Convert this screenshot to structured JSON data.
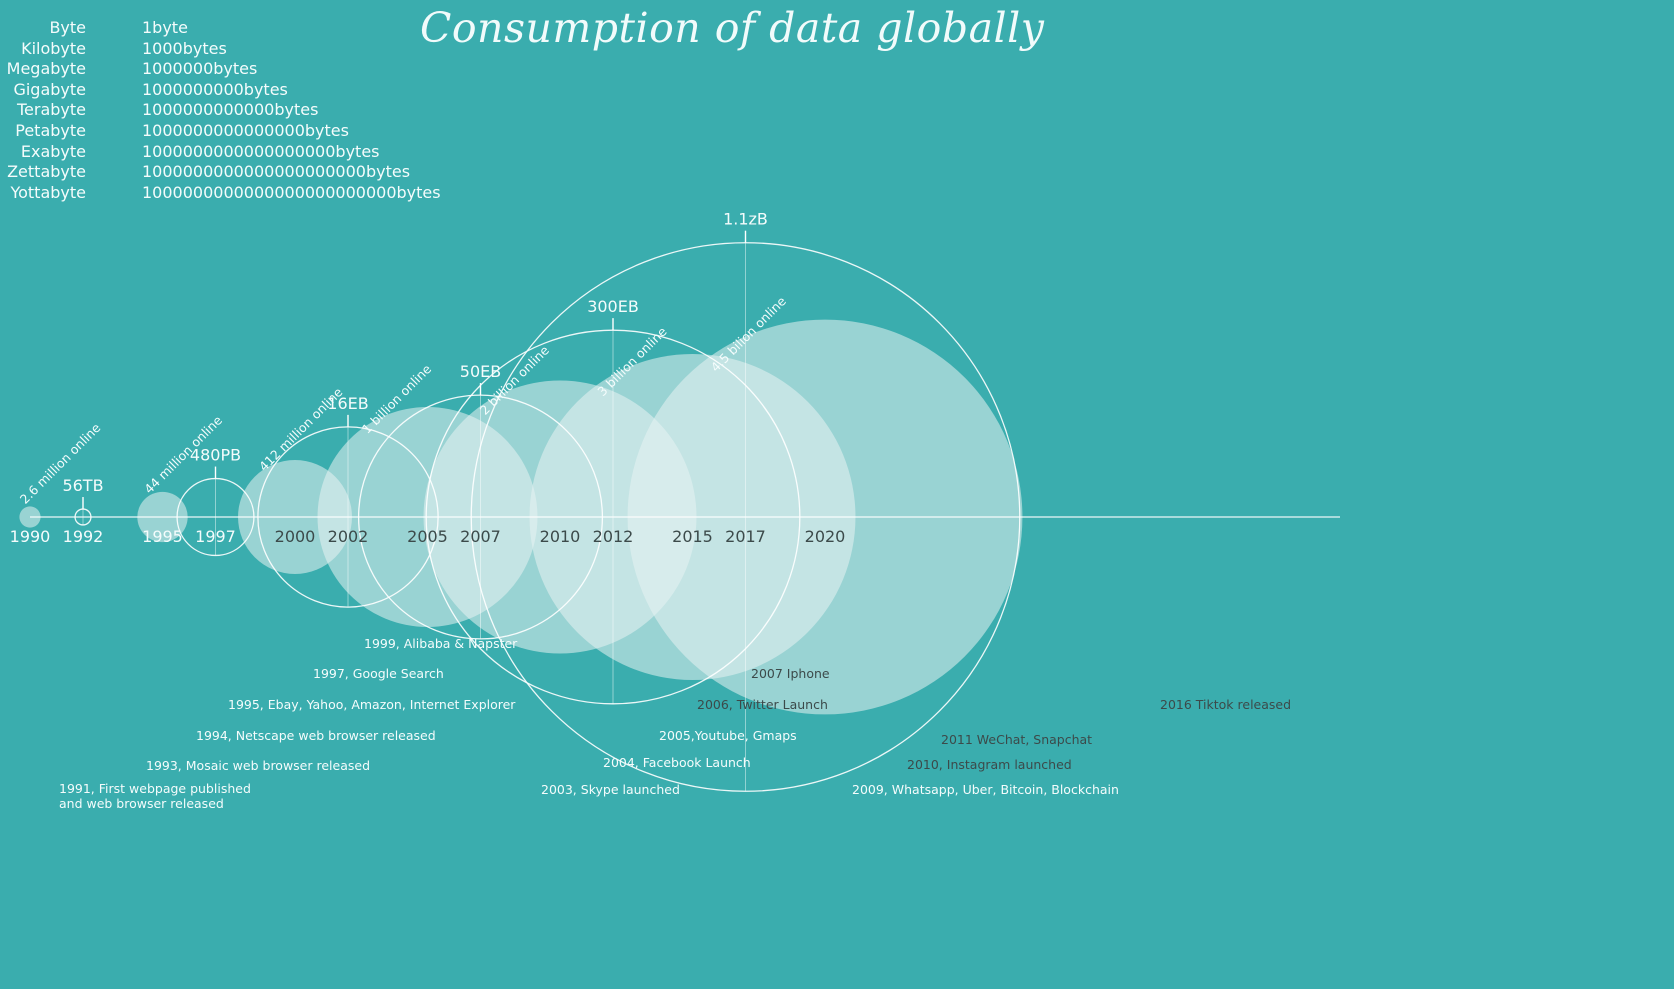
{
  "title": "Consumption of data globally",
  "units": [
    {
      "name": "Byte",
      "value": "1byte"
    },
    {
      "name": "Kilobyte",
      "value": "1000bytes"
    },
    {
      "name": "Megabyte",
      "value": "1000000bytes"
    },
    {
      "name": "Gigabyte",
      "value": "1000000000bytes"
    },
    {
      "name": "Terabyte",
      "value": "1000000000000bytes"
    },
    {
      "name": "Petabyte",
      "value": "1000000000000000bytes"
    },
    {
      "name": "Exabyte",
      "value": "1000000000000000000bytes"
    },
    {
      "name": "Zettabyte",
      "value": "1000000000000000000000bytes"
    },
    {
      "name": "Yottabyte",
      "value": "1000000000000000000000000bytes"
    }
  ],
  "colors": {
    "background": "#3aadae",
    "bubble_fill": "#e8f3f3",
    "line": "#ffffff",
    "text_light": "#f4fcfc",
    "text_dark": "#3c4a4a"
  },
  "chart_data": {
    "type": "bubble-timeline",
    "title": "Consumption of data globally",
    "x": [
      "1990",
      "1992",
      "1995",
      "1997",
      "2000",
      "2002",
      "2005",
      "2007",
      "2010",
      "2012",
      "2015",
      "2017",
      "2020"
    ],
    "users_online": [
      {
        "year": 1990,
        "label": "2.6 million online",
        "circle_diameter_years": 0.8
      },
      {
        "year": 1995,
        "label": "44 million online",
        "circle_diameter_years": 1.9
      },
      {
        "year": 2000,
        "label": "412 million online",
        "circle_diameter_years": 4.3
      },
      {
        "year": 2005,
        "label": "1 billion online",
        "circle_diameter_years": 8.3
      },
      {
        "year": 2010,
        "label": "2 billion online",
        "circle_diameter_years": 10.3
      },
      {
        "year": 2015,
        "label": "3 billion online",
        "circle_diameter_years": 12.3
      },
      {
        "year": 2020,
        "label": "4.5  bilion online",
        "circle_diameter_years": 14.9
      }
    ],
    "data_consumption": [
      {
        "year": 1992,
        "label": "56TB",
        "circle_diameter_years": 0.6
      },
      {
        "year": 1997,
        "label": "480PB",
        "circle_diameter_years": 2.9
      },
      {
        "year": 2002,
        "label": "16EB",
        "circle_diameter_years": 6.8
      },
      {
        "year": 2007,
        "label": "50EB",
        "circle_diameter_years": 9.2
      },
      {
        "year": 2012,
        "label": "300EB",
        "circle_diameter_years": 14.1
      },
      {
        "year": 2017,
        "label": "1.1zB",
        "circle_diameter_years": 20.7
      }
    ],
    "events": [
      {
        "year": 1991,
        "text": "1991, First webpage published\nand web browser released"
      },
      {
        "year": 1993,
        "text": "1993, Mosaic web browser released"
      },
      {
        "year": 1994,
        "text": "1994, Netscape web browser released"
      },
      {
        "year": 1995,
        "text": "1995, Ebay, Yahoo,  Amazon, Internet Explorer"
      },
      {
        "year": 1997,
        "text": "1997, Google Search"
      },
      {
        "year": 1999,
        "text": "1999, Alibaba & Napster"
      },
      {
        "year": 2003,
        "text": "2003, Skype launched"
      },
      {
        "year": 2004,
        "text": "2004, Facebook Launch"
      },
      {
        "year": 2005,
        "text": "2005,Youtube, Gmaps"
      },
      {
        "year": 2006,
        "text": "2006, Twitter Launch"
      },
      {
        "year": 2007,
        "text": "2007 Iphone"
      },
      {
        "year": 2009,
        "text": "2009, Whatsapp, Uber, Bitcoin, Blockchain"
      },
      {
        "year": 2010,
        "text": "2010, Instagram launched"
      },
      {
        "year": 2011,
        "text": "2011 WeChat, Snapchat"
      },
      {
        "year": 2016,
        "text": "2016 Tiktok  released"
      }
    ]
  }
}
